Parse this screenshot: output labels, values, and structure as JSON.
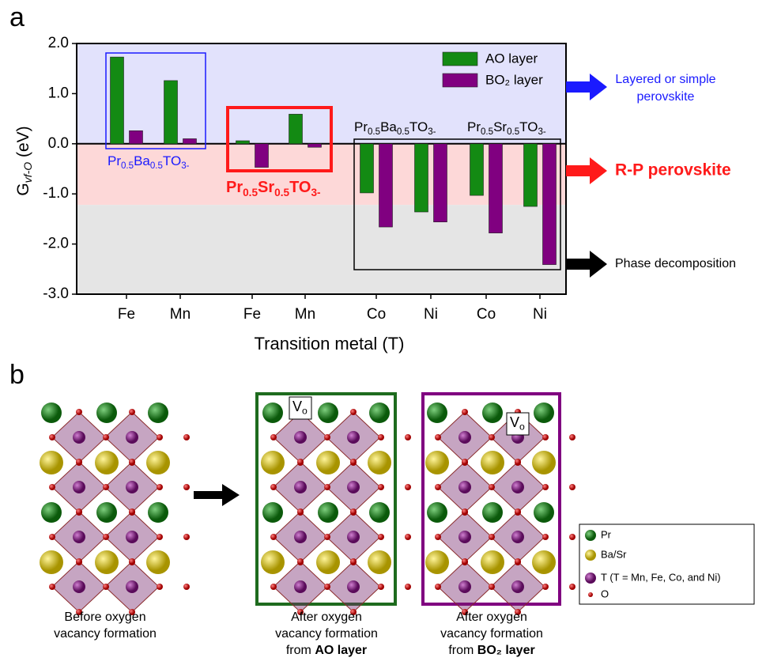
{
  "chart_data": {
    "type": "bar",
    "panel_label": "a",
    "categories": [
      "Fe",
      "Mn",
      "Fe",
      "Mn",
      "Co",
      "Ni",
      "Co",
      "Ni"
    ],
    "series": [
      {
        "name": "AO layer",
        "color": "#138a13",
        "values": [
          1.73,
          1.26,
          0.06,
          0.59,
          -0.98,
          -1.36,
          -1.03,
          -1.25
        ]
      },
      {
        "name": "BO₂ layer",
        "color": "#800080",
        "values": [
          0.26,
          0.1,
          -0.47,
          -0.07,
          -1.66,
          -1.56,
          -1.78,
          -2.41
        ]
      }
    ],
    "ylim": [
      -3.0,
      2.0
    ],
    "yticks": [
      {
        "value": 2.0,
        "label": "2.0"
      },
      {
        "value": 1.0,
        "label": "1.0"
      },
      {
        "value": 0.0,
        "label": "0.0"
      },
      {
        "value": -1.0,
        "label": "-1.0"
      },
      {
        "value": -2.0,
        "label": "-2.0"
      },
      {
        "value": -3.0,
        "label": "-3.0"
      }
    ],
    "x_label": "Transition metal (T)",
    "y_label": [
      "G",
      "vf-O",
      " (eV)"
    ],
    "bands": [
      {
        "from": 2.0,
        "to": 0.0,
        "color": "#e2e2fc"
      },
      {
        "from": 0.0,
        "to": -1.22,
        "color": "#fdd8d8"
      },
      {
        "from": -1.22,
        "to": -3.0,
        "color": "#e5e5e5"
      }
    ],
    "groups": [
      {
        "parts": [
          "Pr",
          "0.5",
          "Ba",
          "0.5",
          "TO",
          "3-"
        ],
        "color": "#1a1aff"
      },
      {
        "parts": [
          "Pr",
          "0.5",
          "Sr",
          "0.5",
          "TO",
          "3-"
        ],
        "color": "#ff1a1a"
      },
      {
        "parts": [
          "Pr",
          "0.5",
          "Ba",
          "0.5",
          "TO",
          "3-"
        ],
        "color": "#000000"
      },
      {
        "parts": [
          "Pr",
          "0.5",
          "Sr",
          "0.5",
          "TO",
          "3-"
        ],
        "color": "#000000"
      }
    ],
    "annotations": [
      {
        "lines": [
          "Layered or simple",
          "perovskite"
        ],
        "color": "#1a1aff"
      },
      {
        "lines": [
          "R-P perovskite"
        ],
        "color": "#ff1a1a"
      },
      {
        "lines": [
          "Phase decomposition"
        ],
        "color": "#000000"
      }
    ]
  },
  "structures": {
    "panel_label": "b",
    "vacancy_label": [
      "V",
      "o"
    ],
    "captions": [
      {
        "lines": [
          "Before oxygen",
          "vacancy formation"
        ]
      },
      {
        "lines": [
          "After oxygen",
          "vacancy formation"
        ],
        "from": "from ",
        "bold": "AO layer"
      },
      {
        "lines": [
          "After oxygen",
          "vacancy formation"
        ],
        "from": "from ",
        "bold": "BO₂ layer"
      }
    ],
    "legend": [
      "Pr",
      "Ba/Sr",
      "T (T = Mn, Fe, Co, and Ni)",
      "O"
    ]
  }
}
